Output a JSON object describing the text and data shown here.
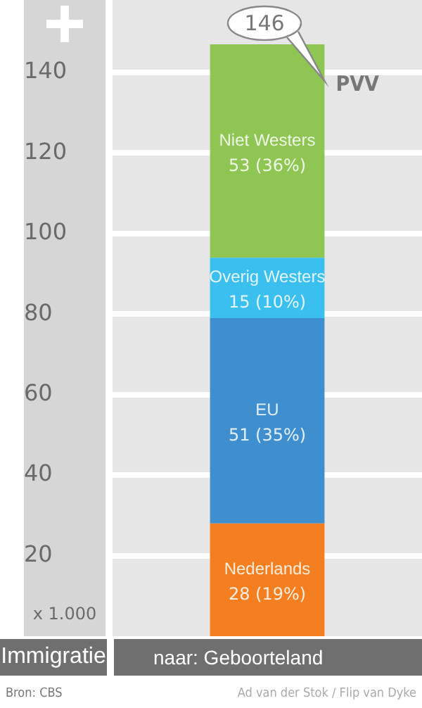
{
  "chart_data": {
    "type": "bar",
    "stacked": true,
    "title": "Immigratie",
    "xlabel": "naar: Geboorteland",
    "ylabel": "x 1.000",
    "categories": [
      null
    ],
    "series": [
      {
        "name": "Nederlands",
        "color": "#f47f20",
        "values": [
          28
        ],
        "value_labels": [
          "28 (19%)"
        ]
      },
      {
        "name": "EU",
        "color": "#3f8fce",
        "values": [
          51
        ],
        "value_labels": [
          "51 (35%)"
        ]
      },
      {
        "name": "Overig Westers",
        "color": "#3bbfee",
        "values": [
          15
        ],
        "value_labels": [
          "15 (10%)"
        ]
      },
      {
        "name": "Niet Westers",
        "color": "#8fc653",
        "values": [
          53
        ],
        "value_labels": [
          "53 (36%)"
        ]
      }
    ],
    "totals": [
      "146"
    ],
    "ylim": [
      0,
      158
    ],
    "yticks": [
      20,
      40,
      60,
      80,
      100,
      120,
      140
    ],
    "grid": "y",
    "annotations": [
      "PVV",
      "Bron: CBS",
      "Ad van der Stok / Flip van Dyke"
    ]
  }
}
